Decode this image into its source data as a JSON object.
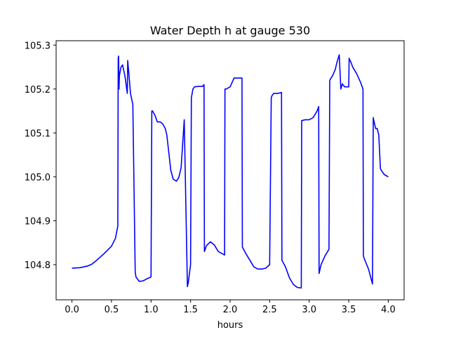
{
  "chart_data": {
    "type": "line",
    "title": "Water Depth h at gauge 530",
    "xlabel": "hours",
    "ylabel": "",
    "xlim": [
      -0.2,
      4.2
    ],
    "ylim": [
      104.72,
      105.31
    ],
    "xticks": [
      0.0,
      0.5,
      1.0,
      1.5,
      2.0,
      2.5,
      3.0,
      3.5,
      4.0
    ],
    "xtick_labels": [
      "0.0",
      "0.5",
      "1.0",
      "1.5",
      "2.0",
      "2.5",
      "3.0",
      "3.5",
      "4.0"
    ],
    "yticks": [
      104.8,
      104.9,
      105.0,
      105.1,
      105.2,
      105.3
    ],
    "ytick_labels": [
      "104.8",
      "104.9",
      "105.0",
      "105.1",
      "105.2",
      "105.3"
    ],
    "grid": false,
    "legend": "none",
    "series": [
      {
        "color": "#0000ff",
        "x": [
          0.0,
          0.1,
          0.2,
          0.25,
          0.3,
          0.4,
          0.5,
          0.55,
          0.58,
          0.585,
          0.59,
          0.595,
          0.6,
          0.62,
          0.64,
          0.67,
          0.7,
          0.705,
          0.72,
          0.74,
          0.77,
          0.8,
          0.81,
          0.85,
          0.9,
          0.95,
          1.0,
          1.01,
          1.02,
          1.05,
          1.08,
          1.12,
          1.15,
          1.18,
          1.2,
          1.25,
          1.28,
          1.32,
          1.35,
          1.38,
          1.42,
          1.46,
          1.47,
          1.5,
          1.51,
          1.53,
          1.55,
          1.6,
          1.65,
          1.67,
          1.675,
          1.7,
          1.75,
          1.8,
          1.85,
          1.9,
          1.93,
          1.935,
          1.95,
          2.0,
          2.05,
          2.1,
          2.15,
          2.155,
          2.2,
          2.25,
          2.3,
          2.35,
          2.4,
          2.45,
          2.5,
          2.52,
          2.53,
          2.55,
          2.6,
          2.65,
          2.655,
          2.7,
          2.75,
          2.8,
          2.85,
          2.9,
          2.905,
          2.95,
          3.0,
          3.05,
          3.1,
          3.12,
          3.125,
          3.15,
          3.2,
          3.25,
          3.26,
          3.3,
          3.33,
          3.35,
          3.38,
          3.4,
          3.42,
          3.425,
          3.45,
          3.48,
          3.5,
          3.505,
          3.53,
          3.55,
          3.6,
          3.65,
          3.68,
          3.685,
          3.7,
          3.75,
          3.8,
          3.81,
          3.815,
          3.84,
          3.86,
          3.88,
          3.9,
          3.91,
          3.95,
          4.0
        ],
        "y": [
          104.792,
          104.793,
          104.797,
          104.801,
          104.808,
          104.824,
          104.842,
          104.86,
          104.888,
          105.27,
          105.275,
          105.2,
          105.23,
          105.25,
          105.255,
          105.23,
          105.19,
          105.265,
          105.235,
          105.19,
          105.165,
          104.783,
          104.772,
          104.762,
          104.763,
          104.768,
          104.772,
          105.15,
          105.15,
          105.14,
          105.125,
          105.125,
          105.12,
          105.11,
          105.095,
          105.015,
          104.995,
          104.99,
          104.998,
          105.02,
          105.13,
          104.75,
          104.758,
          104.8,
          105.18,
          105.2,
          105.205,
          105.206,
          105.206,
          105.21,
          104.83,
          104.843,
          104.852,
          104.845,
          104.83,
          104.825,
          104.822,
          105.2,
          105.2,
          105.205,
          105.225,
          105.225,
          105.225,
          104.84,
          104.825,
          104.81,
          104.795,
          104.79,
          104.79,
          104.792,
          104.8,
          105.18,
          105.185,
          105.19,
          105.19,
          105.192,
          104.81,
          104.795,
          104.77,
          104.755,
          104.748,
          104.747,
          105.128,
          105.13,
          105.13,
          105.135,
          105.15,
          105.16,
          104.78,
          104.8,
          104.82,
          104.835,
          105.22,
          105.232,
          105.245,
          105.26,
          105.278,
          105.2,
          105.212,
          105.21,
          105.205,
          105.205,
          105.205,
          105.27,
          105.26,
          105.25,
          105.235,
          105.215,
          105.2,
          104.82,
          104.812,
          104.79,
          104.756,
          105.135,
          105.13,
          105.11,
          105.11,
          105.095,
          105.02,
          105.015,
          105.005,
          105.0
        ]
      }
    ]
  }
}
